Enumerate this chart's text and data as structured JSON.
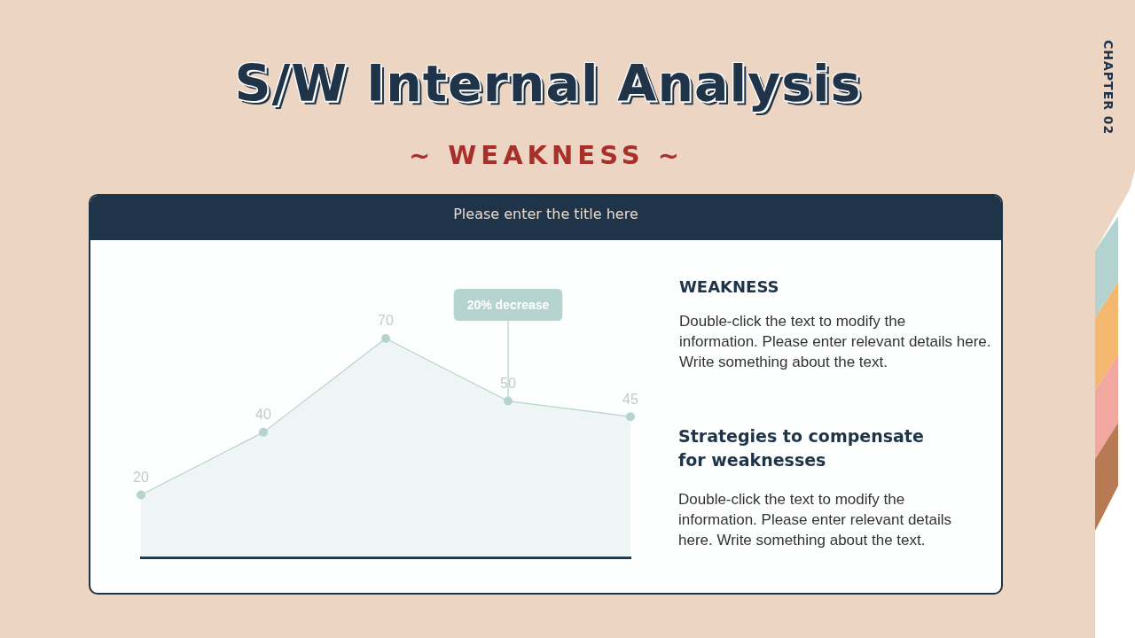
{
  "chart_data": {
    "type": "area",
    "title": "S/W Internal Analysis",
    "subtitle": "~ WEAKNESS ~",
    "categories": [
      null,
      null,
      null,
      null,
      null
    ],
    "values": [
      20,
      40,
      70,
      50,
      45
    ],
    "color": "#b5d3cf",
    "data_labels": true,
    "marker": "circle",
    "line_style": "solid",
    "tick_labels": false,
    "annotations": [
      "CHAPTER 02",
      "Please enter the title here",
      "WEAKNESS",
      "Double-click the text to modify the\ninformation. Please enter relevant details here.\nWrite something about the text.",
      "Strategies to compensate for weaknesses",
      "Double-click the text to modify the information. Please enter relevant details here. Write something about the text.",
      {
        "text": "20% decrease",
        "y": 50
      }
    ]
  }
}
